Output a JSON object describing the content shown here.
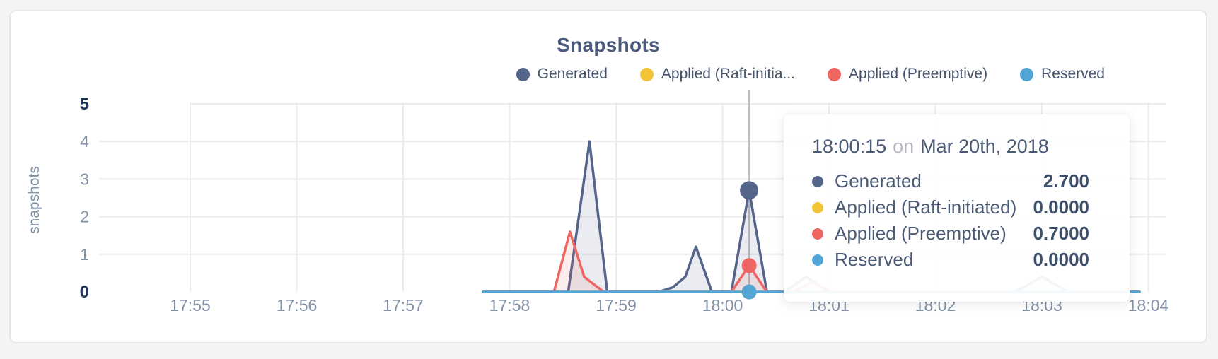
{
  "chart_data": {
    "type": "area",
    "title": "Snapshots",
    "xlabel": "",
    "ylabel": "snapshots",
    "ylim": [
      0,
      5
    ],
    "grid": true,
    "legend_position": "top-right",
    "x_ticks": [
      "17:55",
      "17:56",
      "17:57",
      "17:58",
      "17:59",
      "18:00",
      "18:01",
      "18:02",
      "18:03",
      "18:04"
    ],
    "y_ticks": [
      0,
      1,
      2,
      3,
      4,
      5
    ],
    "bold_y_ticks": [
      0,
      5
    ],
    "series": [
      {
        "name": "Generated",
        "color": "#55648a",
        "points": [
          [
            "17:57:45",
            0
          ],
          [
            "17:58:33",
            0
          ],
          [
            "17:58:45",
            4.0
          ],
          [
            "17:58:55",
            0
          ],
          [
            "17:59:24",
            0
          ],
          [
            "17:59:32",
            0.12
          ],
          [
            "17:59:39",
            0.4
          ],
          [
            "17:59:45",
            1.2
          ],
          [
            "17:59:54",
            0
          ],
          [
            "18:00:05",
            0
          ],
          [
            "18:00:15",
            2.7
          ],
          [
            "18:00:25",
            0
          ],
          [
            "18:00:35",
            0
          ],
          [
            "18:00:47",
            0.4
          ],
          [
            "18:01:00",
            0
          ],
          [
            "18:02:45",
            0
          ],
          [
            "18:03:00",
            0.4
          ],
          [
            "18:03:15",
            0
          ],
          [
            "18:03:55",
            0
          ]
        ]
      },
      {
        "name": "Applied (Raft-initiated)",
        "color": "#f2c337",
        "points": [
          [
            "17:57:45",
            0
          ],
          [
            "18:00:15",
            0
          ],
          [
            "18:03:55",
            0
          ]
        ]
      },
      {
        "name": "Applied (Preemptive)",
        "color": "#ee6562",
        "points": [
          [
            "17:57:45",
            0
          ],
          [
            "17:58:25",
            0
          ],
          [
            "17:58:34",
            1.6
          ],
          [
            "17:58:42",
            0.4
          ],
          [
            "17:58:53",
            0
          ],
          [
            "18:00:05",
            0
          ],
          [
            "18:00:15",
            0.7
          ],
          [
            "18:00:25",
            0
          ],
          [
            "18:00:40",
            0
          ],
          [
            "18:00:50",
            0.25
          ],
          [
            "18:01:02",
            0
          ],
          [
            "18:03:55",
            0
          ]
        ]
      },
      {
        "name": "Reserved",
        "color": "#53a5d5",
        "points": [
          [
            "17:57:45",
            0
          ],
          [
            "18:00:15",
            0
          ],
          [
            "18:03:55",
            0
          ]
        ]
      }
    ],
    "colors": {
      "grid": "#ececed",
      "crosshair": "#bdbec0",
      "axis_text": "#8391a7",
      "axis_text_bold": "#22355c"
    }
  },
  "legend": {
    "items": [
      {
        "label": "Generated",
        "color": "#55648a"
      },
      {
        "label": "Applied (Raft-initia...",
        "color": "#f2c337"
      },
      {
        "label": "Applied (Preemptive)",
        "color": "#ee6562"
      },
      {
        "label": "Reserved",
        "color": "#53a5d5"
      }
    ]
  },
  "tooltip": {
    "time": "18:00:15",
    "conjunction": "on",
    "date": "Mar 20th, 2018",
    "rows": [
      {
        "label": "Generated",
        "value": "2.700",
        "color": "#55648a"
      },
      {
        "label": "Applied (Raft-initiated)",
        "value": "0.0000",
        "color": "#f2c337"
      },
      {
        "label": "Applied (Preemptive)",
        "value": "0.7000",
        "color": "#ee6562"
      },
      {
        "label": "Reserved",
        "value": "0.0000",
        "color": "#53a5d5"
      }
    ]
  }
}
